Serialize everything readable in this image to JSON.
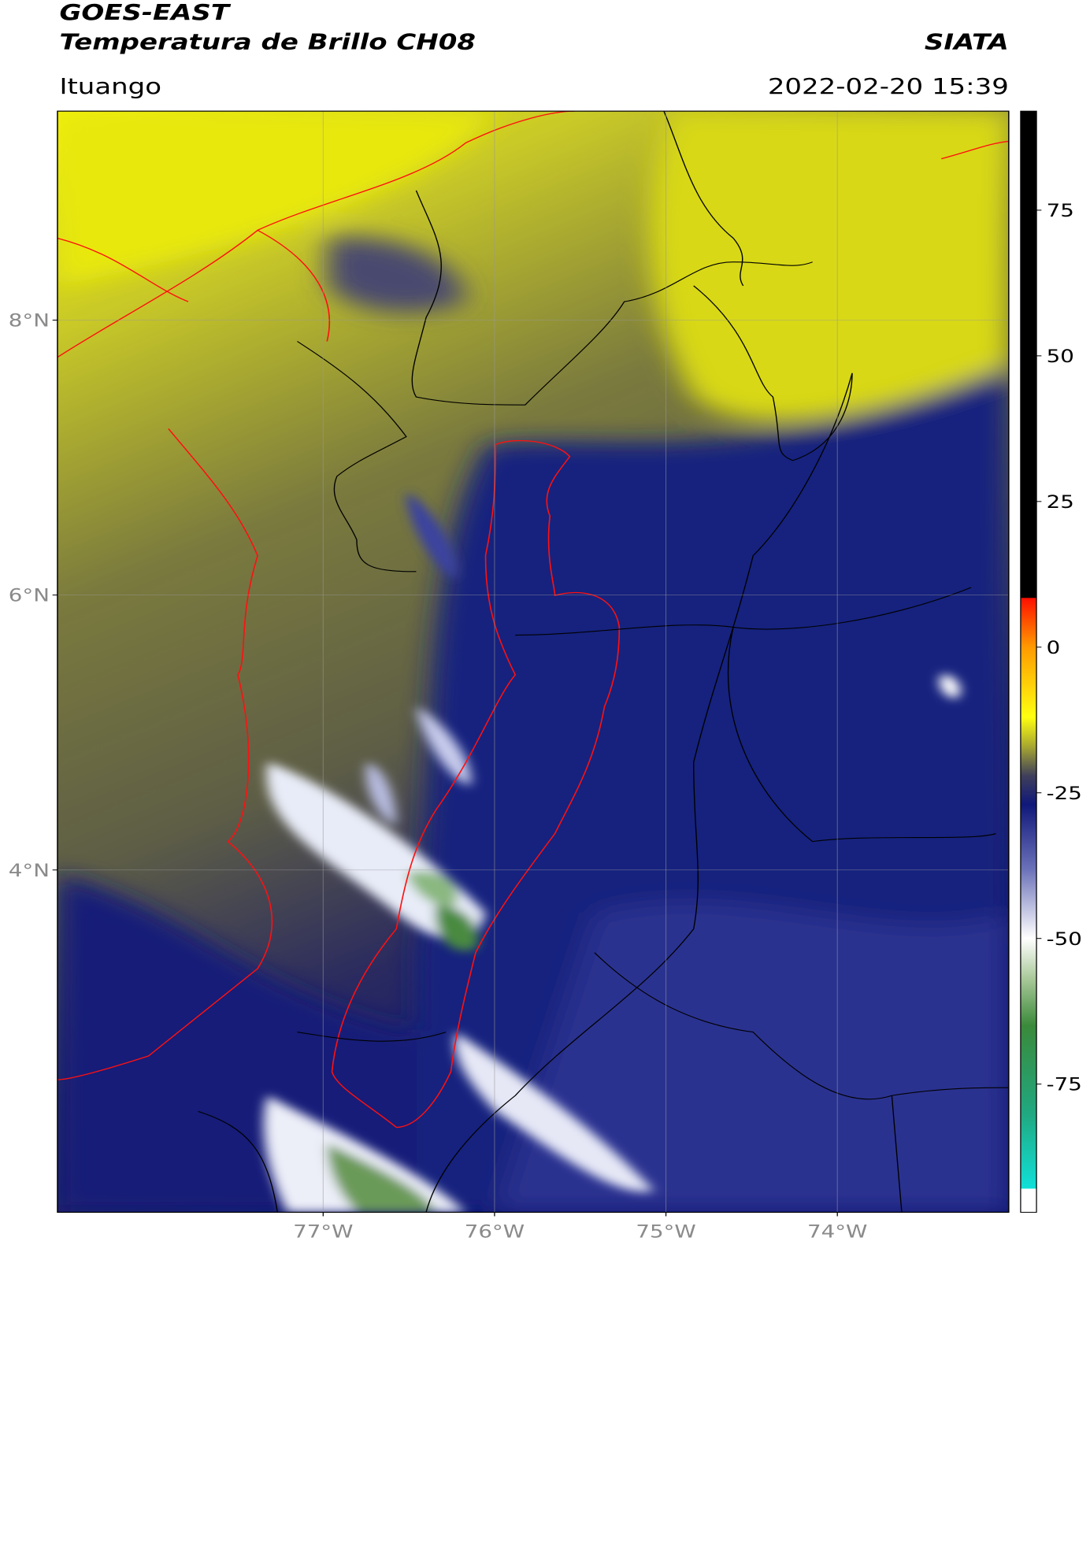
{
  "header": {
    "satellite": "GOES-EAST",
    "product": "Temperatura de Brillo CH08",
    "agency": "SIATA",
    "region": "Ituango",
    "timestamp": "2022-02-20 15:39"
  },
  "map": {
    "lon_range": [
      -78.55,
      -73.0
    ],
    "lat_range": [
      1.51,
      9.52
    ],
    "lat_ticks": [
      {
        "value": 8,
        "label": "8°N"
      },
      {
        "value": 6,
        "label": "6°N"
      },
      {
        "value": 4,
        "label": "4°N"
      }
    ],
    "lon_ticks": [
      {
        "value": -77,
        "label": "77°W"
      },
      {
        "value": -76,
        "label": "76°W"
      },
      {
        "value": -75,
        "label": "75°W"
      },
      {
        "value": -74,
        "label": "74°W"
      }
    ],
    "grid": true
  },
  "colorbar": {
    "range": [
      -97,
      92
    ],
    "ticks": [
      75,
      50,
      25,
      0,
      -25,
      -50,
      -75
    ],
    "stops": [
      {
        "value": -97,
        "color": "#ffffff"
      },
      {
        "value": -93,
        "color": "#ffffff"
      },
      {
        "value": -92.9,
        "color": "#10e0d8"
      },
      {
        "value": -80,
        "color": "#20a880"
      },
      {
        "value": -65,
        "color": "#3a8a3a"
      },
      {
        "value": -57,
        "color": "#a8c898"
      },
      {
        "value": -50,
        "color": "#ffffff"
      },
      {
        "value": -38,
        "color": "#6a70b8"
      },
      {
        "value": -27,
        "color": "#10187a"
      },
      {
        "value": -22,
        "color": "#40405a"
      },
      {
        "value": -17,
        "color": "#a8a830"
      },
      {
        "value": -12,
        "color": "#ffff10"
      },
      {
        "value": 0,
        "color": "#ff9a00"
      },
      {
        "value": 8.4,
        "color": "#ff1000"
      },
      {
        "value": 8.5,
        "color": "#000000"
      },
      {
        "value": 92,
        "color": "#000000"
      }
    ]
  }
}
